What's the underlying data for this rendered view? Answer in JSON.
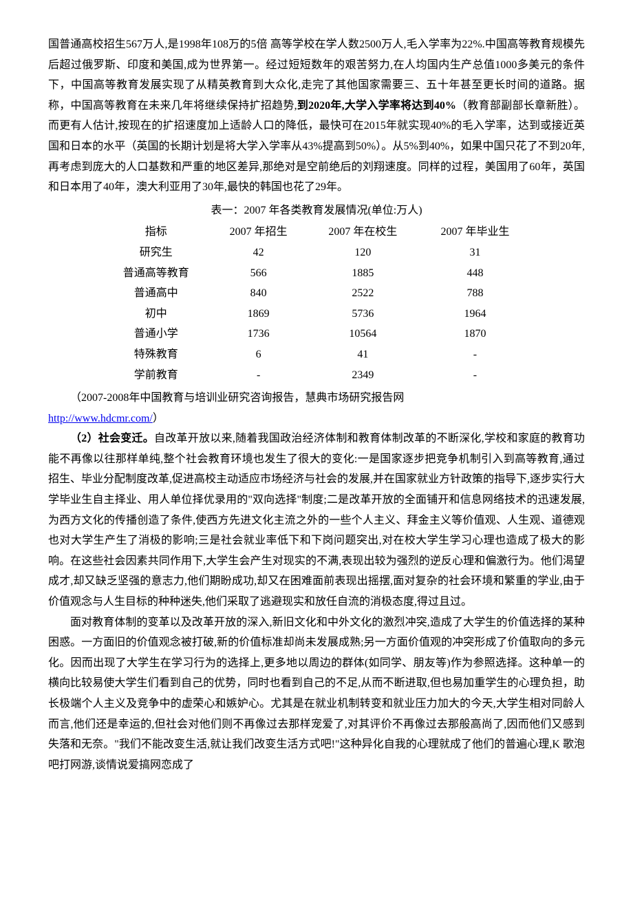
{
  "para1_a": "国普通高校招生567万人,是1998年108万的5倍 高等学校在学人数2500万人,毛入学率为22%.中国高等教育规模先后超过俄罗斯、印度和美国,成为世界第一。经过短短数年的艰苦努力,在人均国内生产总值1000多美元的条件下，中国高等教育发展实现了从精英教育到大众化,走完了其他国家需要三、五十年甚至更长时间的道路。据称，中国高等教育在未来几年将继续保持扩招趋势,",
  "para1_bold": "到2020年,大学入学率将达到40%",
  "para1_b": "（教育部副部长章新胜）。而更有人估计,按现在的扩招速度加上适龄人口的降低，最快可在2015年就实现40%的毛入学率，达到或接近英国和日本的水平（英国的长期计划是将大学入学率从43%提高到50%）。从5%到40%，如果中国只花了不到20年,再考虑到庞大的人口基数和严重的地区差异,那绝对是空前绝后的刘翔速度。同样的过程，美国用了60年，英国和日本用了40年，澳大利亚用了30年,最快的韩国也花了29年。",
  "table": {
    "title": "表一：2007 年各类教育发展情况(单位:万人)",
    "columns": [
      "指标",
      "2007 年招生",
      "2007 年在校生",
      "2007 年毕业生"
    ],
    "rows": [
      [
        "研究生",
        "42",
        "120",
        "31"
      ],
      [
        "普通高等教育",
        "566",
        "1885",
        "448"
      ],
      [
        "普通高中",
        "840",
        "2522",
        "788"
      ],
      [
        "初中",
        "1869",
        "5736",
        "1964"
      ],
      [
        "普通小学",
        "1736",
        "10564",
        "1870"
      ],
      [
        "特殊教育",
        "6",
        "41",
        "-"
      ],
      [
        "学前教育",
        "-",
        "2349",
        "-"
      ]
    ]
  },
  "source_text": "（2007-2008年中国教育与培训业研究咨询报告，慧典市场研究报告网",
  "source_link": "http://www.hdcmr.com/",
  "source_close": "）",
  "para2_label": "（2）社会变迁。",
  "para2": "自改革开放以来,随着我国政治经济体制和教育体制改革的不断深化,学校和家庭的教育功能不再像以往那样单纯,整个社会教育环境也发生了很大的变化:一是国家逐步把竞争机制引入到高等教育,通过招生、毕业分配制度改革,促进高校主动适应市场经济与社会的发展,并在国家就业方针政策的指导下,逐步实行大学毕业生自主择业、用人单位择优录用的\"双向选择\"制度;二是改革开放的全面铺开和信息网络技术的迅速发展,为西方文化的传播创造了条件,使西方先进文化主流之外的一些个人主义、拜金主义等价值观、人生观、道德观也对大学生产生了消极的影响;三是社会就业率低下和下岗问题突出,对在校大学生学习心理也造成了极大的影响。在这些社会因素共同作用下,大学生会产生对现实的不满,表现出较为强烈的逆反心理和偏激行为。他们渴望成才,却又缺乏坚强的意志力,他们期盼成功,却又在困难面前表现出摇摆,面对复杂的社会环境和繁重的学业,由于价值观念与人生目标的种种迷失,他们采取了逃避现实和放任自流的消极态度,得过且过。",
  "para3": "面对教育体制的变革以及改革开放的深入,新旧文化和中外文化的激烈冲突,造成了大学生的价值选择的某种困惑。一方面旧的价值观念被打破,新的价值标准却尚未发展成熟;另一方面价值观的冲突形成了价值取向的多元化。因而出现了大学生在学习行为的选择上,更多地以周边的群体(如同学、朋友等)作为参照选择。这种单一的横向比较易使大学生们看到自己的优势，同时也看到自己的不足,从而不断进取,但也易加重学生的心理负担，助长极端个人主义及竞争中的虚荣心和嫉妒心。尤其是在就业机制转变和就业压力加大的今天,大学生相对同龄人而言,他们还是幸运的,但社会对他们则不再像过去那样宠爱了,对其评价不再像过去那般高尚了,因而他们又感到失落和无奈。\"我们不能改变生活,就让我们改变生活方式吧!\"这种异化自我的心理就成了他们的普遍心理,K 歌泡吧打网游,谈情说爱搞网恋成了"
}
